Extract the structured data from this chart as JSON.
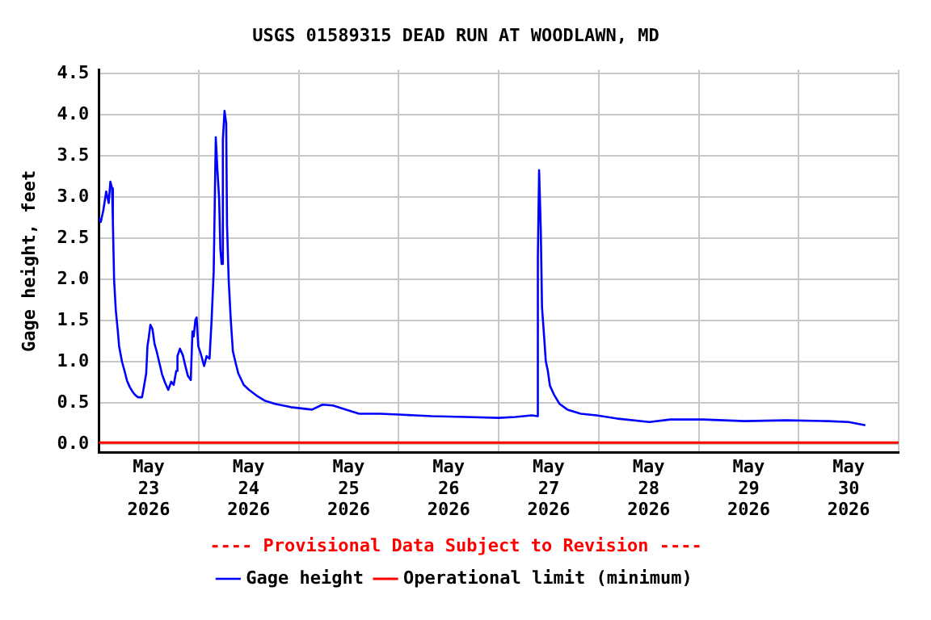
{
  "chart_data": {
    "type": "line",
    "title": "USGS 01589315 DEAD RUN AT WOODLAWN, MD",
    "ylabel": "Gage height, feet",
    "annotations": [
      "---- Provisional Data Subject to Revision ----"
    ],
    "x": [
      "2026-05-23T00:00",
      "2026-05-23T00:30",
      "2026-05-23T01:06",
      "2026-05-23T01:48",
      "2026-05-23T02:24",
      "2026-05-23T02:48",
      "2026-05-23T03:12",
      "2026-05-23T03:24",
      "2026-05-23T03:42",
      "2026-05-23T04:06",
      "2026-05-23T04:36",
      "2026-05-23T04:54",
      "2026-05-23T05:36",
      "2026-05-23T06:12",
      "2026-05-23T06:48",
      "2026-05-23T07:30",
      "2026-05-23T08:06",
      "2026-05-23T08:42",
      "2026-05-23T09:24",
      "2026-05-23T10:24",
      "2026-05-23T10:54",
      "2026-05-23T11:24",
      "2026-05-23T11:42",
      "2026-05-23T12:00",
      "2026-05-23T12:24",
      "2026-05-23T12:54",
      "2026-05-23T13:24",
      "2026-05-23T13:54",
      "2026-05-23T14:30",
      "2026-05-23T15:12",
      "2026-05-23T15:54",
      "2026-05-23T16:42",
      "2026-05-23T17:24",
      "2026-05-23T18:00",
      "2026-05-23T18:36",
      "2026-05-23T18:54",
      "2026-05-23T19:30",
      "2026-05-23T20:12",
      "2026-05-23T20:48",
      "2026-05-23T21:24",
      "2026-05-23T22:06",
      "2026-05-23T22:30",
      "2026-05-23T22:48",
      "2026-05-23T23:12",
      "2026-05-23T23:30",
      "2026-05-23T23:54",
      "2026-05-24T00:30",
      "2026-05-24T01:18",
      "2026-05-24T01:54",
      "2026-05-24T02:36",
      "2026-05-24T03:06",
      "2026-05-24T03:36",
      "2026-05-24T04:06",
      "2026-05-24T04:30",
      "2026-05-24T04:54",
      "2026-05-24T05:12",
      "2026-05-24T05:30",
      "2026-05-24T05:48",
      "2026-05-24T06:12",
      "2026-05-24T06:36",
      "2026-05-24T06:48",
      "2026-05-24T07:12",
      "2026-05-24T07:42",
      "2026-05-24T08:12",
      "2026-05-24T08:54",
      "2026-05-24T09:30",
      "2026-05-24T10:48",
      "2026-05-24T12:06",
      "2026-05-24T13:54",
      "2026-05-24T15:48",
      "2026-05-24T18:18",
      "2026-05-24T22:06",
      "2026-05-25T03:12",
      "2026-05-25T05:42",
      "2026-05-25T08:12",
      "2026-05-25T11:24",
      "2026-05-25T14:30",
      "2026-05-25T19:36",
      "2026-05-26T00:00",
      "2026-05-26T08:00",
      "2026-05-26T16:00",
      "2026-05-27T00:00",
      "2026-05-27T04:00",
      "2026-05-27T08:00",
      "2026-05-27T09:18",
      "2026-05-27T09:24",
      "2026-05-27T09:42",
      "2026-05-27T10:06",
      "2026-05-27T10:24",
      "2026-05-27T10:54",
      "2026-05-27T11:18",
      "2026-05-27T11:48",
      "2026-05-27T12:18",
      "2026-05-27T13:18",
      "2026-05-27T14:36",
      "2026-05-27T16:30",
      "2026-05-27T19:42",
      "2026-05-27T23:30",
      "2026-05-28T04:36",
      "2026-05-28T12:12",
      "2026-05-28T17:12",
      "2026-05-29T01:00",
      "2026-05-29T11:00",
      "2026-05-29T21:00",
      "2026-05-30T07:00",
      "2026-05-30T12:00",
      "2026-05-30T16:00"
    ],
    "series": [
      {
        "name": "Gage height",
        "color": "#0000ff",
        "values": [
          2.75,
          2.7,
          2.84,
          3.07,
          2.93,
          3.19,
          3.11,
          2.7,
          1.99,
          1.63,
          1.37,
          1.19,
          1.0,
          0.89,
          0.77,
          0.69,
          0.64,
          0.6,
          0.57,
          0.57,
          0.71,
          0.86,
          1.19,
          1.29,
          1.45,
          1.4,
          1.22,
          1.13,
          1.0,
          0.85,
          0.75,
          0.66,
          0.76,
          0.72,
          0.89,
          1.07,
          1.16,
          1.08,
          0.95,
          0.83,
          0.78,
          1.37,
          1.31,
          1.51,
          1.54,
          1.19,
          1.1,
          0.95,
          1.07,
          1.04,
          1.51,
          2.1,
          3.73,
          3.32,
          2.99,
          2.37,
          2.19,
          3.7,
          4.05,
          3.9,
          2.66,
          1.99,
          1.51,
          1.13,
          0.98,
          0.86,
          0.72,
          0.66,
          0.59,
          0.53,
          0.49,
          0.45,
          0.42,
          0.48,
          0.47,
          0.42,
          0.37,
          0.37,
          0.36,
          0.34,
          0.33,
          0.32,
          0.33,
          0.35,
          0.34,
          2.28,
          3.33,
          2.61,
          1.66,
          1.31,
          1.01,
          0.89,
          0.71,
          0.6,
          0.49,
          0.42,
          0.37,
          0.35,
          0.31,
          0.27,
          0.3,
          0.3,
          0.28,
          0.29,
          0.28,
          0.27,
          0.23
        ]
      }
    ],
    "ref_lines": [
      {
        "axis": "y",
        "value": 0.02,
        "label": "Operational limit (minimum)",
        "color": "#ff0000"
      }
    ],
    "xlim": [
      "2026-05-23T00:00",
      "2026-05-31T00:00"
    ],
    "xticks": [
      {
        "value": "2026-05-23T00:00",
        "label": null
      },
      {
        "value": "2026-05-23T12:00",
        "label": "May 23 2026"
      },
      {
        "value": "2026-05-24T00:00",
        "label": null
      },
      {
        "value": "2026-05-24T12:00",
        "label": "May 24 2026"
      },
      {
        "value": "2026-05-25T00:00",
        "label": null
      },
      {
        "value": "2026-05-25T12:00",
        "label": "May 25 2026"
      },
      {
        "value": "2026-05-26T00:00",
        "label": null
      },
      {
        "value": "2026-05-26T12:00",
        "label": "May 26 2026"
      },
      {
        "value": "2026-05-27T00:00",
        "label": null
      },
      {
        "value": "2026-05-27T12:00",
        "label": "May 27 2026"
      },
      {
        "value": "2026-05-28T00:00",
        "label": null
      },
      {
        "value": "2026-05-28T12:00",
        "label": "May 28 2026"
      },
      {
        "value": "2026-05-29T00:00",
        "label": null
      },
      {
        "value": "2026-05-29T12:00",
        "label": "May 29 2026"
      },
      {
        "value": "2026-05-30T00:00",
        "label": null
      },
      {
        "value": "2026-05-30T12:00",
        "label": "May 30 2026"
      },
      {
        "value": "2026-05-31T00:00",
        "label": null
      }
    ],
    "ylim": [
      -0.1,
      4.55
    ],
    "yticks": [
      {
        "value": 0,
        "label": "0.0"
      },
      {
        "value": 0.5,
        "label": "0.5"
      },
      {
        "value": 1,
        "label": "1.0"
      },
      {
        "value": 1.5,
        "label": "1.5"
      },
      {
        "value": 2,
        "label": "2.0"
      },
      {
        "value": 2.5,
        "label": "2.5"
      },
      {
        "value": 3,
        "label": "3.0"
      },
      {
        "value": 3.5,
        "label": "3.5"
      },
      {
        "value": 4,
        "label": "4.0"
      },
      {
        "value": 4.5,
        "label": "4.5"
      }
    ],
    "grid": true,
    "legend": "bottom",
    "marker": "none",
    "line_style": "solid"
  }
}
